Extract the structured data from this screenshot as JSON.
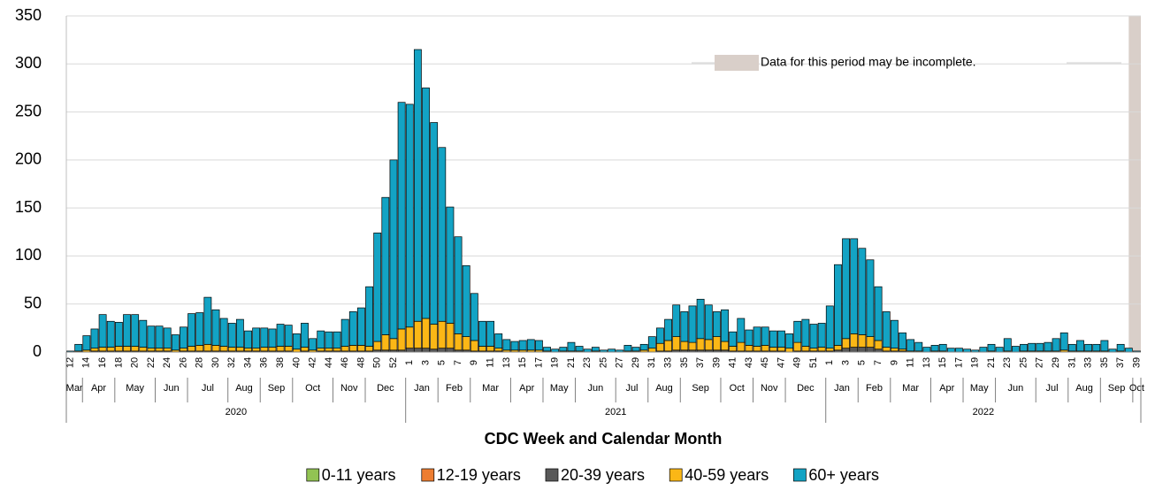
{
  "chart_data": {
    "type": "bar",
    "stacked": true,
    "x_label": "CDC Week and Calendar Month",
    "annotation": "Data for this period may be incomplete.",
    "categories": [
      "12",
      null,
      "14",
      null,
      "16",
      null,
      "18",
      null,
      "20",
      null,
      "22",
      null,
      "24",
      null,
      "26",
      null,
      "28",
      null,
      "30",
      null,
      "32",
      null,
      "34",
      null,
      "36",
      null,
      "38",
      null,
      "40",
      null,
      "42",
      null,
      "44",
      null,
      "46",
      null,
      "48",
      null,
      "50",
      null,
      "52",
      null,
      "1",
      null,
      "3",
      null,
      "5",
      null,
      "7",
      null,
      "9",
      null,
      "11",
      null,
      "13",
      null,
      "15",
      null,
      "17",
      null,
      "19",
      null,
      "21",
      null,
      "23",
      null,
      "25",
      null,
      "27",
      null,
      "29",
      null,
      "31",
      null,
      "33",
      null,
      "35",
      null,
      "37",
      null,
      "39",
      null,
      "41",
      null,
      "43",
      null,
      "45",
      null,
      "47",
      null,
      "49",
      null,
      "51",
      null,
      "1",
      null,
      "3",
      null,
      "5",
      null,
      "7",
      null,
      "9",
      null,
      "11",
      null,
      "13",
      null,
      "15",
      null,
      "17",
      null,
      "19",
      null,
      "21",
      null,
      "23",
      null,
      "25",
      null,
      "27",
      null,
      "29",
      null,
      "31",
      null,
      "33",
      null,
      "35",
      null,
      "37",
      null,
      "39"
    ],
    "months": [
      {
        "label": "Mar",
        "span": 2
      },
      {
        "label": "Apr",
        "span": 4
      },
      {
        "label": "May",
        "span": 5
      },
      {
        "label": "Jun",
        "span": 4
      },
      {
        "label": "Jul",
        "span": 5
      },
      {
        "label": "Aug",
        "span": 4
      },
      {
        "label": "Sep",
        "span": 4
      },
      {
        "label": "Oct",
        "span": 5
      },
      {
        "label": "Nov",
        "span": 4
      },
      {
        "label": "Dec",
        "span": 5
      },
      {
        "label": "Jan",
        "span": 4
      },
      {
        "label": "Feb",
        "span": 4
      },
      {
        "label": "Mar",
        "span": 5
      },
      {
        "label": "Apr",
        "span": 4
      },
      {
        "label": "May",
        "span": 4
      },
      {
        "label": "Jun",
        "span": 5
      },
      {
        "label": "Jul",
        "span": 4
      },
      {
        "label": "Aug",
        "span": 4
      },
      {
        "label": "Sep",
        "span": 5
      },
      {
        "label": "Oct",
        "span": 4
      },
      {
        "label": "Nov",
        "span": 4
      },
      {
        "label": "Dec",
        "span": 5
      },
      {
        "label": "Jan",
        "span": 4
      },
      {
        "label": "Feb",
        "span": 4
      },
      {
        "label": "Mar",
        "span": 5
      },
      {
        "label": "Apr",
        "span": 4
      },
      {
        "label": "May",
        "span": 4
      },
      {
        "label": "Jun",
        "span": 5
      },
      {
        "label": "Jul",
        "span": 4
      },
      {
        "label": "Aug",
        "span": 4
      },
      {
        "label": "Sep",
        "span": 4
      },
      {
        "label": "Oct",
        "span": 1
      }
    ],
    "years": [
      {
        "label": "2020",
        "span": 42
      },
      {
        "label": "2021",
        "span": 52
      },
      {
        "label": "2022",
        "span": 39
      }
    ],
    "series": [
      {
        "name": "0-11 years",
        "color": "#92c353",
        "values": [
          0,
          0,
          0,
          0,
          0,
          0,
          0,
          0,
          0,
          0,
          0,
          0,
          0,
          0,
          0,
          0,
          0,
          0,
          0,
          0,
          0,
          0,
          0,
          0,
          0,
          0,
          0,
          0,
          0,
          0,
          0,
          0,
          0,
          0,
          0,
          0,
          0,
          0,
          0,
          0,
          0,
          0,
          0,
          0,
          0,
          0,
          0,
          0,
          0,
          0,
          0,
          0,
          0,
          0,
          0,
          0,
          0,
          0,
          0,
          0,
          0,
          0,
          0,
          0,
          0,
          0,
          0,
          0,
          0,
          0,
          0,
          0,
          0,
          0,
          0,
          0,
          0,
          0,
          0,
          0,
          0,
          0,
          0,
          0,
          0,
          0,
          0,
          0,
          0,
          0,
          0,
          0,
          0,
          0,
          0,
          0,
          0,
          0,
          0,
          0,
          0,
          0,
          0,
          0,
          0,
          0,
          0,
          0,
          0,
          0,
          0,
          0,
          0,
          0,
          0,
          0,
          0,
          0,
          0,
          0,
          0,
          0,
          0,
          0,
          0,
          0,
          0,
          0,
          0,
          0,
          0,
          0,
          0
        ]
      },
      {
        "name": "12-19 years",
        "color": "#ed7d31",
        "values": [
          0,
          0,
          0,
          0,
          0,
          0,
          0,
          0,
          0,
          0,
          0,
          0,
          0,
          0,
          0,
          0,
          0,
          0,
          0,
          0,
          0,
          0,
          0,
          0,
          0,
          0,
          0,
          0,
          0,
          0,
          0,
          0,
          0,
          0,
          0,
          0,
          0,
          0,
          0,
          0,
          0,
          0,
          0,
          0,
          0,
          0,
          0,
          0,
          0,
          0,
          0,
          0,
          0,
          0,
          0,
          0,
          0,
          0,
          0,
          0,
          0,
          0,
          0,
          0,
          0,
          0,
          0,
          0,
          0,
          0,
          0,
          0,
          0,
          0,
          0,
          0,
          0,
          0,
          0,
          0,
          0,
          0,
          0,
          0,
          0,
          0,
          0,
          0,
          0,
          0,
          0,
          0,
          0,
          0,
          0,
          0,
          0,
          0,
          0,
          0,
          0,
          0,
          0,
          0,
          0,
          0,
          0,
          0,
          0,
          0,
          0,
          0,
          0,
          0,
          0,
          0,
          0,
          0,
          0,
          0,
          0,
          0,
          0,
          0,
          0,
          0,
          0,
          0,
          0,
          0,
          0,
          0,
          0
        ]
      },
      {
        "name": "20-39 years",
        "color": "#595959",
        "values": [
          0,
          0,
          0,
          1,
          1,
          1,
          1,
          1,
          1,
          1,
          1,
          1,
          1,
          0,
          1,
          1,
          1,
          1,
          1,
          1,
          1,
          1,
          1,
          1,
          1,
          1,
          1,
          1,
          0,
          1,
          0,
          1,
          1,
          1,
          1,
          1,
          1,
          1,
          2,
          2,
          2,
          2,
          4,
          4,
          4,
          3,
          4,
          4,
          2,
          2,
          1,
          1,
          1,
          1,
          0,
          0,
          0,
          0,
          0,
          0,
          0,
          0,
          0,
          0,
          0,
          0,
          0,
          0,
          0,
          0,
          0,
          0,
          0,
          1,
          1,
          2,
          2,
          2,
          2,
          2,
          2,
          2,
          1,
          1,
          1,
          1,
          1,
          1,
          1,
          0,
          1,
          1,
          1,
          1,
          1,
          2,
          4,
          5,
          5,
          5,
          3,
          1,
          1,
          1,
          0,
          0,
          0,
          0,
          0,
          0,
          0,
          0,
          0,
          0,
          0,
          0,
          0,
          0,
          0,
          0,
          0,
          0,
          0,
          0,
          0,
          0,
          0,
          0,
          0,
          0,
          0,
          0,
          0
        ]
      },
      {
        "name": "40-59 years",
        "color": "#fbb716",
        "values": [
          0,
          1,
          2,
          3,
          4,
          4,
          5,
          5,
          5,
          4,
          3,
          3,
          3,
          2,
          3,
          5,
          6,
          7,
          6,
          5,
          4,
          4,
          3,
          3,
          4,
          4,
          5,
          5,
          3,
          4,
          2,
          3,
          3,
          3,
          5,
          6,
          6,
          5,
          9,
          16,
          12,
          22,
          22,
          28,
          31,
          26,
          28,
          26,
          17,
          14,
          11,
          5,
          5,
          3,
          2,
          2,
          2,
          2,
          2,
          1,
          0,
          1,
          1,
          1,
          0,
          1,
          0,
          0,
          0,
          1,
          1,
          2,
          4,
          8,
          11,
          14,
          9,
          8,
          12,
          11,
          14,
          9,
          5,
          9,
          6,
          5,
          6,
          4,
          4,
          4,
          9,
          5,
          3,
          4,
          3,
          5,
          10,
          14,
          13,
          11,
          9,
          4,
          3,
          2,
          1,
          1,
          0,
          1,
          1,
          0,
          0,
          0,
          0,
          0,
          1,
          0,
          1,
          0,
          1,
          1,
          1,
          1,
          1,
          2,
          1,
          1,
          1,
          1,
          1,
          0,
          1,
          0,
          0
        ]
      },
      {
        "name": "60+ years",
        "color": "#13a3c4",
        "values": [
          1,
          7,
          15,
          20,
          34,
          27,
          25,
          33,
          33,
          28,
          23,
          23,
          21,
          16,
          22,
          34,
          34,
          49,
          37,
          29,
          25,
          29,
          18,
          21,
          20,
          19,
          23,
          22,
          16,
          25,
          12,
          18,
          17,
          17,
          28,
          35,
          39,
          62,
          113,
          143,
          186,
          236,
          232,
          283,
          240,
          210,
          181,
          121,
          101,
          74,
          49,
          26,
          26,
          15,
          11,
          9,
          10,
          11,
          10,
          4,
          3,
          4,
          9,
          5,
          3,
          4,
          2,
          3,
          2,
          6,
          4,
          6,
          12,
          16,
          22,
          33,
          31,
          38,
          41,
          36,
          26,
          33,
          15,
          25,
          16,
          20,
          19,
          17,
          17,
          15,
          22,
          28,
          25,
          25,
          44,
          84,
          104,
          99,
          90,
          80,
          56,
          37,
          29,
          17,
          12,
          9,
          5,
          6,
          7,
          4,
          4,
          3,
          2,
          5,
          7,
          5,
          13,
          6,
          7,
          8,
          8,
          9,
          13,
          18,
          7,
          11,
          7,
          7,
          11,
          3,
          7,
          4,
          1
        ]
      }
    ],
    "ylim": [
      0,
      350
    ],
    "yticks": [
      0,
      50,
      100,
      150,
      200,
      250,
      300,
      350
    ],
    "grid": true
  }
}
